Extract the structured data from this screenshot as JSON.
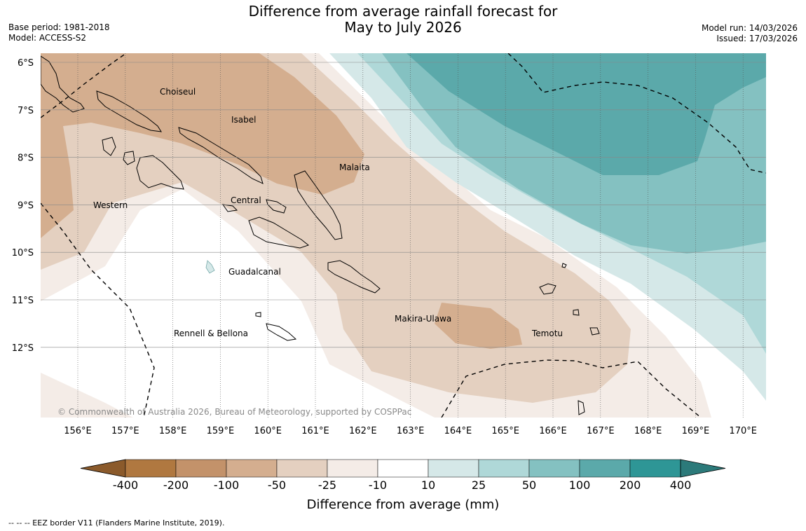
{
  "title": {
    "line1": "Difference from average rainfall forecast for",
    "line2": "May to July 2026"
  },
  "meta": {
    "base_period": "Base period: 1981-2018",
    "model": "Model: ACCESS-S2",
    "model_run": "Model run: 14/03/2026",
    "issued": "Issued: 17/03/2026"
  },
  "axes": {
    "lat_labels": [
      "6°S",
      "7°S",
      "8°S",
      "9°S",
      "10°S",
      "11°S",
      "12°S"
    ],
    "lon_labels": [
      "156°E",
      "157°E",
      "158°E",
      "159°E",
      "160°E",
      "161°E",
      "162°E",
      "163°E",
      "164°E",
      "165°E",
      "166°E",
      "167°E",
      "168°E",
      "169°E",
      "170°E"
    ]
  },
  "provinces": [
    "Choiseul",
    "Isabel",
    "Malaita",
    "Western",
    "Central",
    "Guadalcanal",
    "Makira-Ulawa",
    "Temotu",
    "Rennell & Bellona"
  ],
  "copyright": "© Commonwealth of Australia 2026, Bureau of Meteorology, supported by COSPPac",
  "colorbar": {
    "title": "Difference from average (mm)",
    "labels": [
      "-400",
      "-200",
      "-100",
      "-50",
      "-25",
      "-10",
      "10",
      "25",
      "50",
      "100",
      "200",
      "400"
    ],
    "colors": [
      "#8b5a2b",
      "#b07840",
      "#c3926a",
      "#d4ae8f",
      "#e4d0c0",
      "#f4ece7",
      "#ffffff",
      "#d5e8e8",
      "#afd8d8",
      "#84c1c1",
      "#5ba9aa",
      "#2e9696",
      "#2c7a7a"
    ]
  },
  "legend_note": "--  --  -- EEZ border V11 (Flanders Marine Institute, 2019)."
}
